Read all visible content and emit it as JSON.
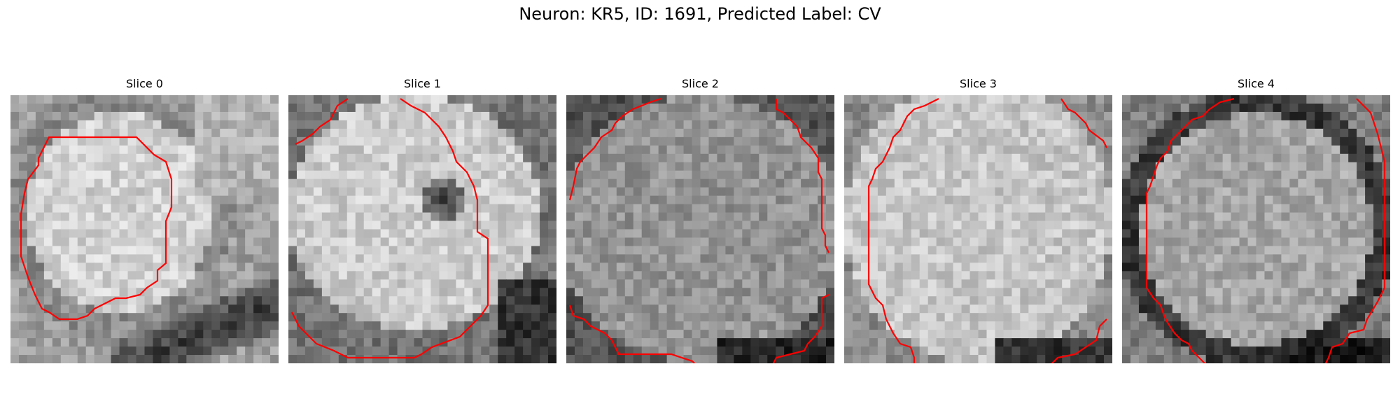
{
  "title": "Neuron: KR5, ID: 1691, Predicted Label: CV",
  "slices": [
    {
      "label": "Slice 0"
    },
    {
      "label": "Slice 1"
    },
    {
      "label": "Slice 2"
    },
    {
      "label": "Slice 3"
    },
    {
      "label": "Slice 4"
    }
  ],
  "contour_color": "#ff0000"
}
